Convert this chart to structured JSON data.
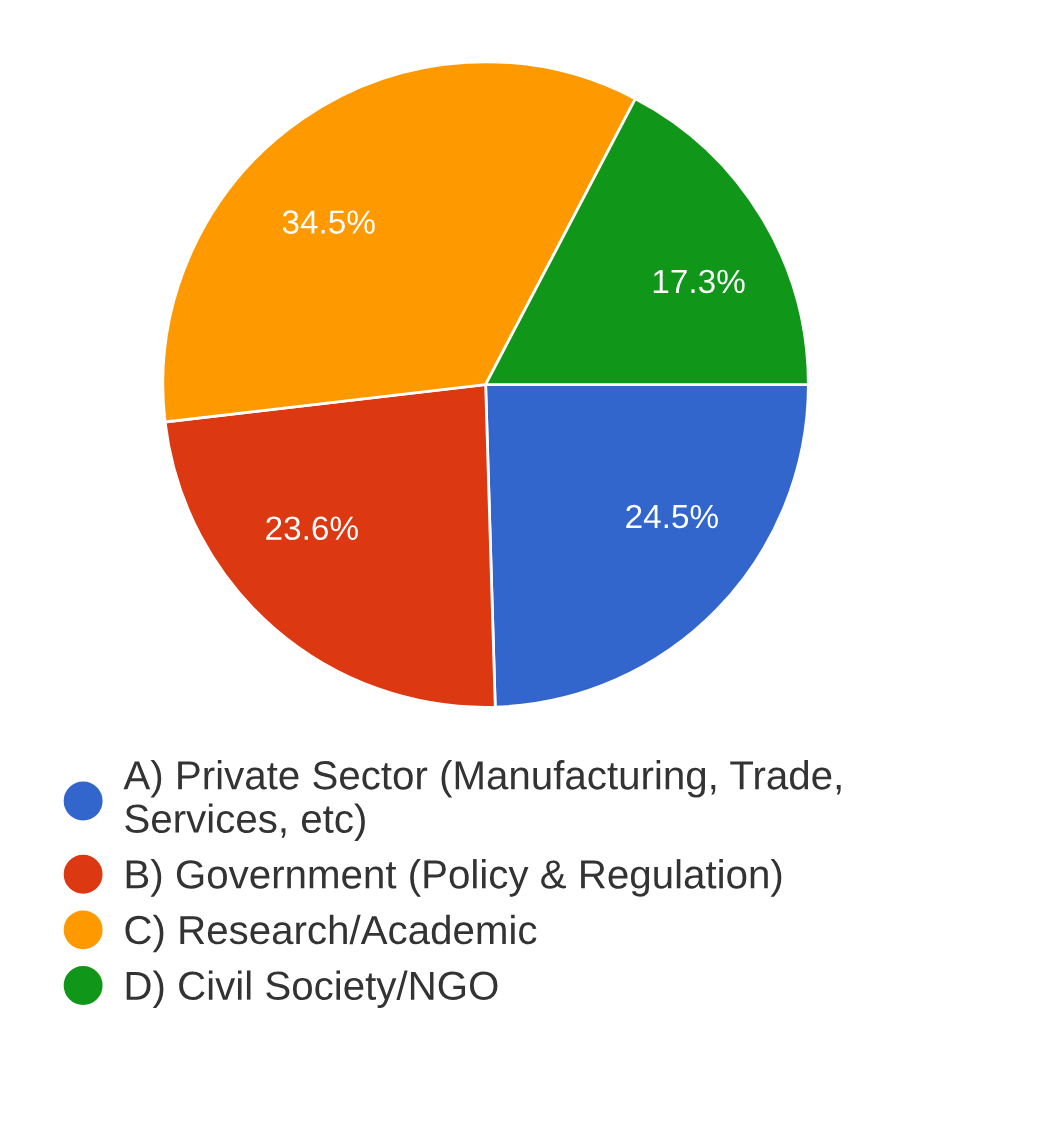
{
  "chart_data": {
    "type": "pie",
    "categories": [
      "A) Private Sector (Manufacturing, Trade, Services, etc)",
      "B) Government (Policy & Regulation)",
      "C) Research/Academic",
      "D) Civil Society/NGO"
    ],
    "values": [
      24.5,
      23.6,
      34.5,
      17.3
    ],
    "colors": [
      "#3366cc",
      "#dc3912",
      "#ff9900",
      "#109618"
    ],
    "value_labels": [
      "24.5%",
      "23.6%",
      "34.5%",
      "17.3%"
    ],
    "legend": "bottom"
  }
}
